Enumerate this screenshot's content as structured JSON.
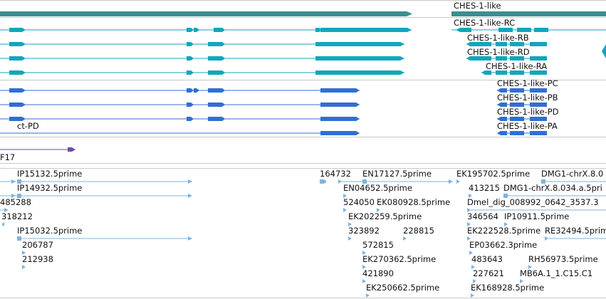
{
  "colors": {
    "gene": "#3a8f91",
    "transcript": "#10a6bd",
    "cds": "#2f6fd3",
    "other": "#6c4fa0",
    "est": "#7fb3de",
    "divider": "#c9c9c9"
  },
  "gene_track": {
    "genes": [
      {
        "label": ""
      },
      {
        "label": "CHES-1-like"
      }
    ]
  },
  "transcript_track": {
    "transcripts": [
      {
        "label": ""
      },
      {
        "label": ""
      },
      {
        "label": ""
      },
      {
        "label": ""
      },
      {
        "label": "CHES-1-like-RC"
      },
      {
        "label": "CHES-1-like-RB"
      },
      {
        "label": "CHES-1-like-RD"
      },
      {
        "label": "CHES-1-like-RA"
      }
    ]
  },
  "cds_track": {
    "cds": [
      {
        "label": ""
      },
      {
        "label": ""
      },
      {
        "label": ""
      },
      {
        "label": "ct-PD"
      },
      {
        "label": "CHES-1-like-PC"
      },
      {
        "label": "CHES-1-like-PB"
      },
      {
        "label": "CHES-1-like-PD"
      },
      {
        "label": "CHES-1-like-PA"
      }
    ]
  },
  "other_track": {
    "features": [
      {
        "label": "F17"
      }
    ]
  },
  "est_track": {
    "features": [
      {
        "label": "IP15132.5prime"
      },
      {
        "label": "IP14932.5prime"
      },
      {
        "label": "485288"
      },
      {
        "label": "318212"
      },
      {
        "label": "IP15032.5prime"
      },
      {
        "label": "206787"
      },
      {
        "label": "212938"
      },
      {
        "label": "164732"
      },
      {
        "label": "EN17127.5prime"
      },
      {
        "label": "EN04652.5prime"
      },
      {
        "label": "524050"
      },
      {
        "label": "EK080928.5prime"
      },
      {
        "label": "EK202259.5prime"
      },
      {
        "label": "323892"
      },
      {
        "label": "228815"
      },
      {
        "label": "572815"
      },
      {
        "label": "EK270362.5prime"
      },
      {
        "label": "421890"
      },
      {
        "label": "EK250662.5prime"
      },
      {
        "label": "EK195702.5prime"
      },
      {
        "label": "DMG1-chrX.8.0"
      },
      {
        "label": "413215"
      },
      {
        "label": "DMG1-chrX.8.034.a.5pri"
      },
      {
        "label": "Dmel_dig_008992_0642_3537.3"
      },
      {
        "label": "346564"
      },
      {
        "label": "IP10911.5prime"
      },
      {
        "label": "EK222528.5prime"
      },
      {
        "label": "RE32494.5prime"
      },
      {
        "label": "EP03662.3prime"
      },
      {
        "label": "483643"
      },
      {
        "label": "RH56973.5prime"
      },
      {
        "label": "227621"
      },
      {
        "label": "MB6A.1_1.C15.C1"
      },
      {
        "label": "EK168928.5prime"
      }
    ]
  }
}
